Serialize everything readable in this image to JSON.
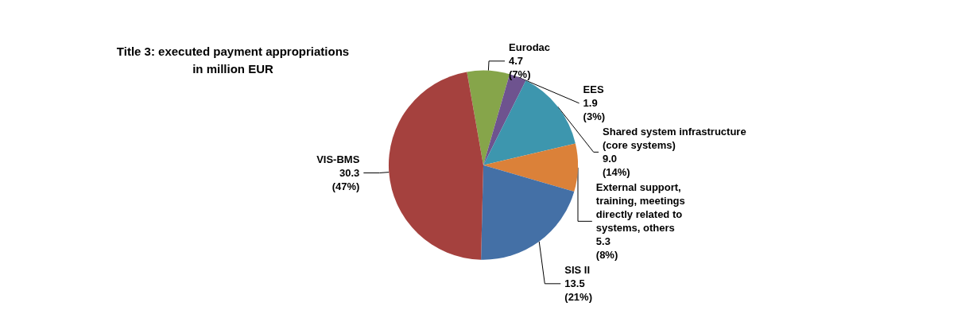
{
  "chart_data": {
    "type": "pie",
    "title": "Title 3: executed payment appropriations\nin million EUR",
    "categories": [
      "Eurodac",
      "EES",
      "Shared system infrastructure\n(core systems)",
      "External support,\ntraining, meetings\ndirectly related to\nsystems, others",
      "SIS II",
      "VIS-BMS"
    ],
    "values": [
      4.7,
      1.9,
      9.0,
      5.3,
      13.5,
      30.3
    ],
    "value_labels": [
      "4.7\n(7%)",
      "1.9\n(3%)",
      "9.0\n(14%)",
      "5.3\n(8%)",
      "13.5\n(21%)",
      "30.3\n(47%)"
    ],
    "colors": [
      "#86a54a",
      "#6e538f",
      "#3d96ae",
      "#db8139",
      "#4470a6",
      "#a5413e"
    ],
    "legend": false
  }
}
